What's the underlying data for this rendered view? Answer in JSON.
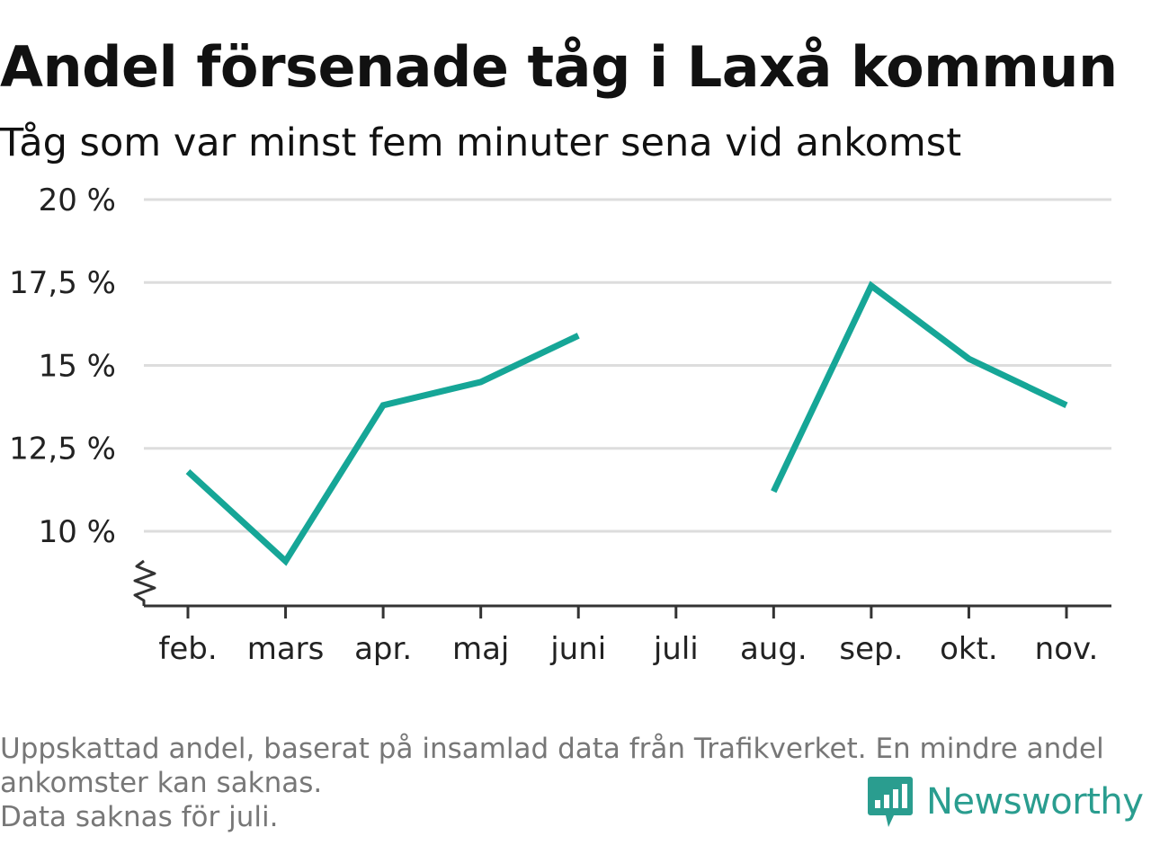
{
  "chart_data": {
    "type": "line",
    "title": "Andel försenade tåg i Laxå kommun",
    "subtitle": "Tåg som var minst fem minuter sena vid ankomst",
    "categories": [
      "feb.",
      "mars",
      "apr.",
      "maj",
      "juni",
      "juli",
      "aug.",
      "sep.",
      "okt.",
      "nov."
    ],
    "series": [
      {
        "values": [
          11.8,
          9.1,
          13.8,
          14.5,
          15.9,
          null,
          11.2,
          17.4,
          15.2,
          13.8
        ]
      }
    ],
    "yticks": [
      10,
      12.5,
      15,
      17.5,
      20
    ],
    "ytick_labels": [
      "10 %",
      "12,5 %",
      "15 %",
      "17,5 %",
      "20 %"
    ],
    "ylim": [
      7.75,
      20
    ],
    "axis_break": true,
    "grid": true,
    "line_color": "#16a697"
  },
  "footer": {
    "line1": "Uppskattad andel, baserat på insamlad data från Trafikverket. En mindre andel",
    "line2": "ankomster kan saknas.",
    "line3": "Data saknas för juli."
  },
  "brand": {
    "name": "Newsworthy",
    "logo_icon": "newsworthy-chart-bubble-icon",
    "color": "#2a9d8f"
  }
}
